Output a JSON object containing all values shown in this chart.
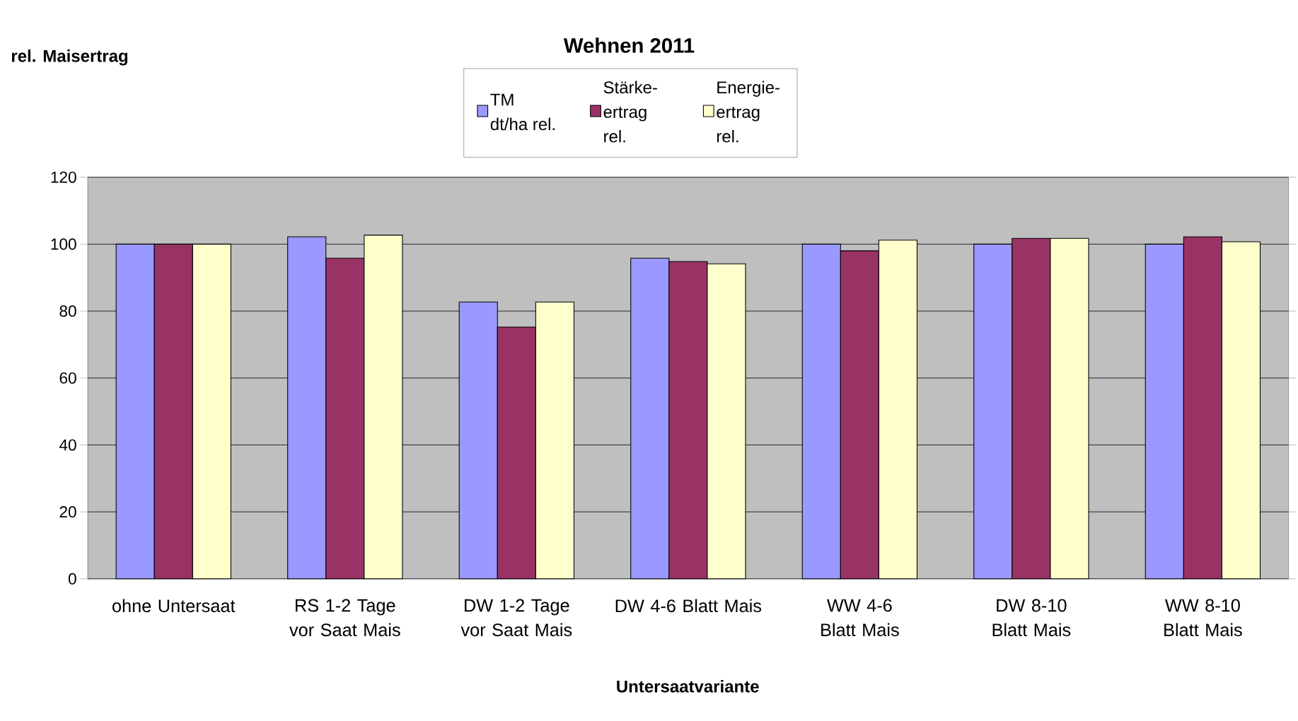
{
  "chart_data": {
    "type": "bar",
    "title": "Wehnen 2011",
    "annotations": [
      "rel. Maisertrag"
    ],
    "xlabel": "Untersaatvariante",
    "categories": [
      "ohne Untersaat",
      "RS 1-2 Tage vor Saat Mais",
      "DW 1-2 Tage vor Saat Mais",
      "DW 4-6 Blatt Mais",
      "WW 4-6 Blatt Mais",
      "DW 8-10 Blatt Mais",
      "WW 8-10 Blatt Mais"
    ],
    "series": [
      {
        "name": "TM dt/ha rel.",
        "color": "#9999ff",
        "values": [
          100,
          102.2,
          82.7,
          95.8,
          100,
          100,
          100
        ]
      },
      {
        "name": "Stärke-ertrag rel.",
        "color": "#993366",
        "values": [
          100,
          95.8,
          75.2,
          94.8,
          98,
          101.7,
          102.2
        ]
      },
      {
        "name": "Energie-ertrag rel.",
        "color": "#ffffcc",
        "values": [
          100,
          102.7,
          82.7,
          94.1,
          101.2,
          101.7,
          100.7
        ]
      }
    ],
    "ylim": [
      0,
      120
    ],
    "yticks": [
      0,
      20,
      40,
      60,
      80,
      100,
      120
    ],
    "grid": "y",
    "legend": "top"
  }
}
